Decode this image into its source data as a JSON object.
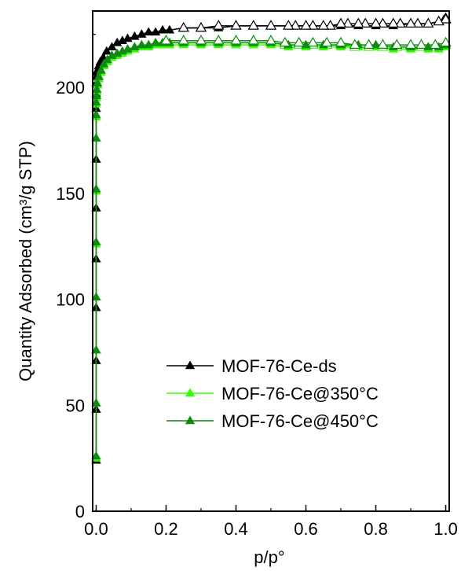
{
  "chart_data": {
    "type": "line",
    "xlabel": "p/p°",
    "ylabel": "Quantity Adsorbed (cm³/g STP)",
    "xlim": [
      -0.01,
      1.01
    ],
    "ylim": [
      0,
      236
    ],
    "x_ticks": [
      0.0,
      0.2,
      0.4,
      0.6,
      0.8,
      1.0
    ],
    "x_tick_labels": [
      "0.0",
      "0.2",
      "0.4",
      "0.6",
      "0.8",
      "1.0"
    ],
    "y_ticks": [
      0,
      50,
      100,
      150,
      200
    ],
    "y_tick_labels": [
      "0",
      "50",
      "100",
      "150",
      "200"
    ],
    "grid": false,
    "legend_position": "lower-right",
    "series": [
      {
        "name": "MOF-76-Ce-ds",
        "color": "#000000",
        "marker": "triangle",
        "adsorption": {
          "x": [
            0.0,
            0.0,
            0.0,
            0.0,
            0.0,
            0.0,
            0.0,
            0.0,
            0.0,
            0.0,
            0.001,
            0.002,
            0.004,
            0.007,
            0.012,
            0.02,
            0.03,
            0.045,
            0.06,
            0.075,
            0.09,
            0.11,
            0.13,
            0.15,
            0.17,
            0.19,
            0.21,
            0.25,
            0.3,
            0.35,
            0.4,
            0.45,
            0.5,
            0.55,
            0.6,
            0.65,
            0.7,
            0.75,
            0.8,
            0.85,
            0.9,
            0.95,
            0.98,
            0.995,
            1.0
          ],
          "y": [
            24,
            48,
            71,
            96,
            119,
            143,
            166,
            190,
            197,
            202,
            205,
            207,
            208,
            210,
            212,
            214,
            217,
            219,
            221,
            222,
            223,
            224,
            225,
            226,
            226,
            227,
            227,
            228,
            228,
            228,
            229,
            229,
            229,
            229,
            229,
            229,
            229,
            229,
            229,
            229,
            230,
            230,
            231,
            232,
            233
          ]
        },
        "desorption": {
          "x": [
            1.0,
            0.98,
            0.95,
            0.92,
            0.9,
            0.87,
            0.85,
            0.82,
            0.8,
            0.77,
            0.75,
            0.72,
            0.7,
            0.67,
            0.65,
            0.62,
            0.6,
            0.57,
            0.55,
            0.5,
            0.45,
            0.4,
            0.35,
            0.3,
            0.25
          ],
          "y": [
            232,
            231,
            230,
            230,
            230,
            230,
            230,
            230,
            230,
            230,
            230,
            230,
            230,
            229,
            229,
            229,
            229,
            229,
            229,
            229,
            229,
            229,
            229,
            228,
            228
          ]
        }
      },
      {
        "name": "MOF-76-Ce@350°C",
        "color": "#33ff00",
        "marker": "triangle",
        "adsorption": {
          "x": [
            0.0,
            0.0,
            0.0,
            0.0,
            0.0,
            0.0,
            0.0,
            0.0,
            0.0,
            0.001,
            0.002,
            0.004,
            0.008,
            0.014,
            0.022,
            0.032,
            0.045,
            0.06,
            0.075,
            0.09,
            0.11,
            0.13,
            0.15,
            0.17,
            0.19,
            0.21,
            0.25,
            0.3,
            0.35,
            0.4,
            0.45,
            0.5,
            0.55,
            0.6,
            0.65,
            0.7,
            0.75,
            0.8,
            0.85,
            0.9,
            0.95,
            0.98,
            1.0
          ],
          "y": [
            25,
            51,
            76,
            101,
            126,
            151,
            176,
            186,
            192,
            195,
            198,
            201,
            204,
            207,
            210,
            212,
            214,
            215,
            216,
            217,
            218,
            219,
            219,
            220,
            220,
            220,
            220,
            220,
            220,
            220,
            220,
            220,
            219,
            219,
            219,
            219,
            219,
            219,
            218,
            218,
            218,
            218,
            219
          ]
        },
        "desorption": {
          "x": [
            1.0,
            0.97,
            0.93,
            0.9,
            0.86,
            0.82,
            0.78,
            0.74,
            0.7,
            0.66,
            0.62,
            0.58,
            0.54,
            0.5,
            0.45,
            0.4,
            0.35,
            0.3,
            0.25,
            0.2
          ],
          "y": [
            220,
            219,
            219,
            219,
            219,
            219,
            219,
            219,
            220,
            220,
            220,
            220,
            220,
            221,
            221,
            221,
            221,
            221,
            221,
            221
          ]
        }
      },
      {
        "name": "MOF-76-Ce@450°C",
        "color": "#118a11",
        "marker": "triangle",
        "adsorption": {
          "x": [
            0.0,
            0.0,
            0.0,
            0.0,
            0.0,
            0.0,
            0.0,
            0.0,
            0.0,
            0.001,
            0.002,
            0.004,
            0.008,
            0.014,
            0.022,
            0.032,
            0.045,
            0.06,
            0.075,
            0.09,
            0.11,
            0.13,
            0.15,
            0.17,
            0.19,
            0.21,
            0.25,
            0.3,
            0.35,
            0.4,
            0.45,
            0.5,
            0.55,
            0.6,
            0.65,
            0.7,
            0.75,
            0.8,
            0.85,
            0.9,
            0.95,
            0.98,
            1.0
          ],
          "y": [
            26,
            51,
            76,
            101,
            127,
            152,
            176,
            187,
            193,
            196,
            199,
            202,
            205,
            208,
            211,
            213,
            215,
            216,
            217,
            218,
            219,
            220,
            220,
            221,
            221,
            221,
            221,
            221,
            221,
            221,
            221,
            221,
            220,
            220,
            220,
            220,
            220,
            220,
            219,
            219,
            219,
            219,
            220
          ]
        },
        "desorption": {
          "x": [
            1.0,
            0.97,
            0.93,
            0.9,
            0.86,
            0.82,
            0.78,
            0.74,
            0.7,
            0.66,
            0.62,
            0.58,
            0.54,
            0.5,
            0.45,
            0.4,
            0.35,
            0.3,
            0.25,
            0.2
          ],
          "y": [
            221,
            220,
            220,
            220,
            220,
            220,
            220,
            220,
            221,
            221,
            221,
            221,
            221,
            222,
            222,
            222,
            222,
            222,
            222,
            222
          ]
        }
      }
    ]
  }
}
